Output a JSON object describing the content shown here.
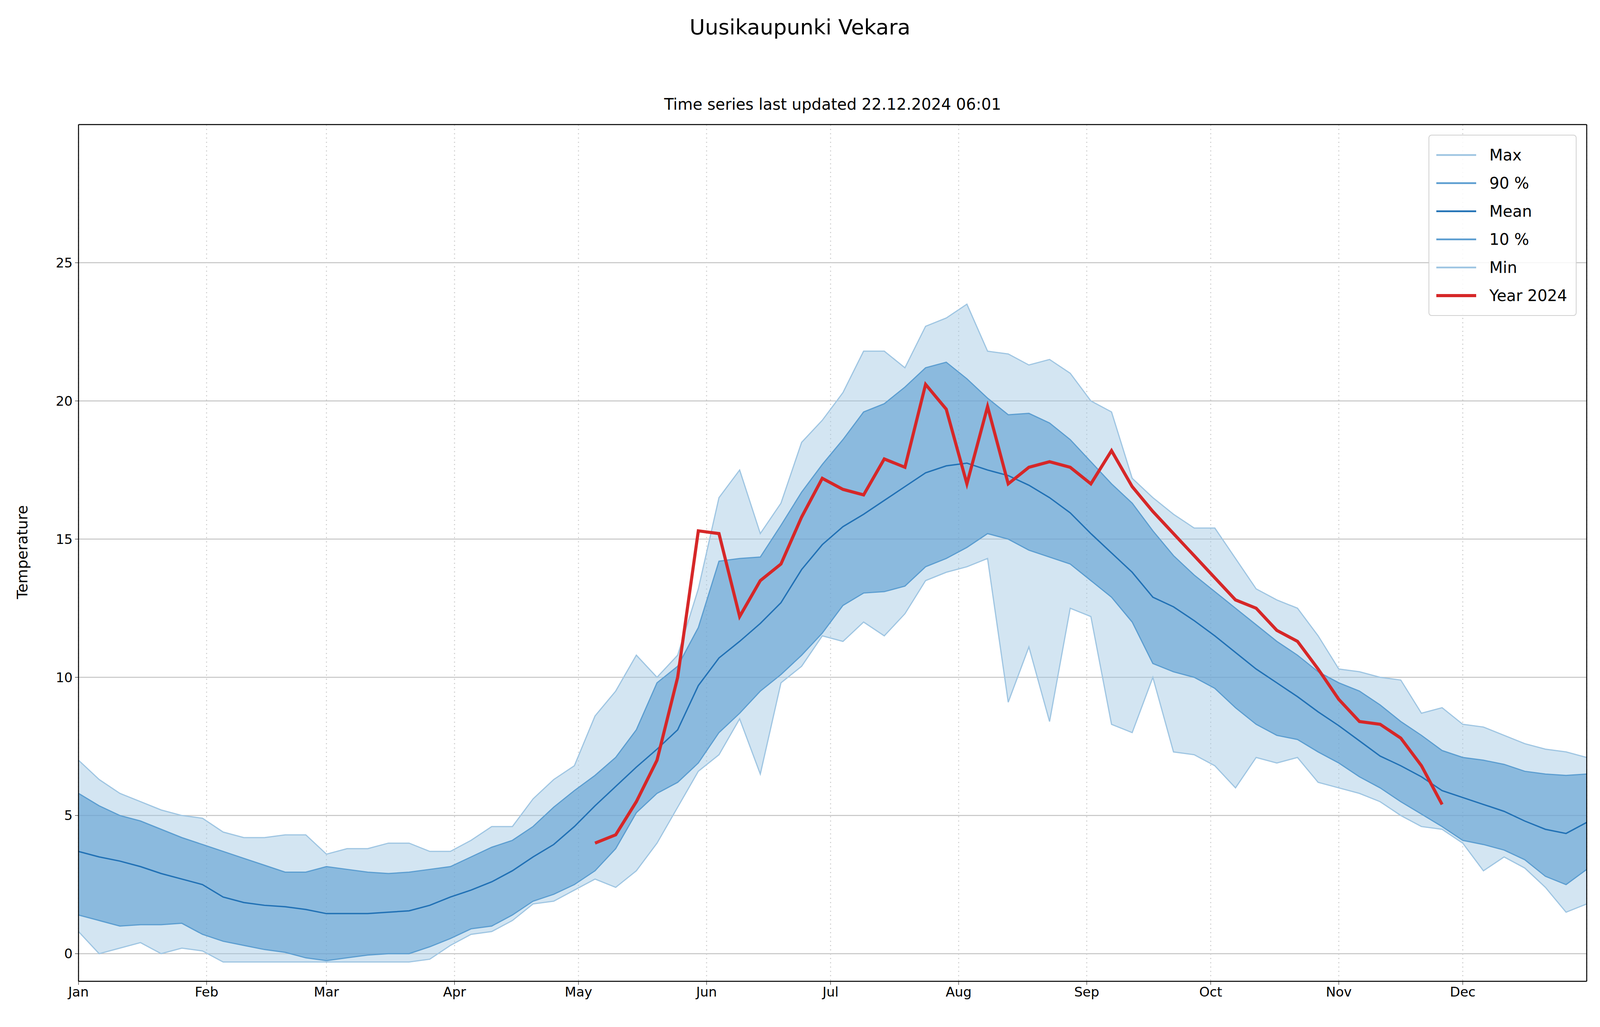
{
  "chart_data": {
    "type": "line",
    "title": "Uusikaupunki Vekara",
    "subtitle": "Time series last updated 22.12.2024 06:01",
    "y_label": "Temperature",
    "x": [
      0,
      5,
      10,
      15,
      20,
      25,
      30,
      35,
      40,
      45,
      50,
      55,
      60,
      65,
      70,
      75,
      80,
      85,
      90,
      95,
      100,
      105,
      110,
      115,
      120,
      125,
      130,
      135,
      140,
      145,
      150,
      155,
      160,
      165,
      170,
      175,
      180,
      185,
      190,
      195,
      200,
      205,
      210,
      215,
      220,
      225,
      230,
      235,
      240,
      245,
      250,
      255,
      260,
      265,
      270,
      275,
      280,
      285,
      290,
      295,
      300,
      305,
      310,
      315,
      320,
      325,
      330,
      335,
      340,
      345,
      350,
      355,
      360,
      365
    ],
    "xlim": [
      0,
      365
    ],
    "xticks": [
      {
        "value": 0,
        "label": "Jan"
      },
      {
        "value": 31,
        "label": "Feb"
      },
      {
        "value": 60,
        "label": "Mar"
      },
      {
        "value": 91,
        "label": "Apr"
      },
      {
        "value": 121,
        "label": "May"
      },
      {
        "value": 152,
        "label": "Jun"
      },
      {
        "value": 182,
        "label": "Jul"
      },
      {
        "value": 213,
        "label": "Aug"
      },
      {
        "value": 244,
        "label": "Sep"
      },
      {
        "value": 274,
        "label": "Oct"
      },
      {
        "value": 305,
        "label": "Nov"
      },
      {
        "value": 335,
        "label": "Dec"
      }
    ],
    "ylim": [
      -1,
      30
    ],
    "yticks": [
      0,
      5,
      10,
      15,
      20,
      25
    ],
    "grid": true,
    "legend": "upper right",
    "series": [
      {
        "name": "Max",
        "type": "area",
        "color": "#9ec5e2",
        "line_style": "solid",
        "values": [
          7.0,
          6.3,
          5.8,
          5.5,
          5.2,
          5.0,
          4.9,
          4.4,
          4.2,
          4.2,
          4.3,
          4.3,
          3.6,
          3.8,
          3.8,
          4.0,
          4.0,
          3.7,
          3.7,
          4.1,
          4.6,
          4.6,
          5.6,
          6.3,
          6.8,
          8.6,
          9.5,
          10.8,
          10.0,
          10.8,
          13.2,
          16.5,
          17.5,
          15.2,
          16.3,
          18.5,
          19.3,
          20.3,
          21.8,
          21.8,
          21.2,
          22.7,
          23.0,
          23.5,
          21.8,
          21.7,
          21.3,
          21.5,
          21.0,
          20.0,
          19.6,
          17.2,
          16.5,
          15.9,
          15.4,
          15.4,
          14.3,
          13.2,
          12.8,
          12.5,
          11.5,
          10.3,
          10.2,
          10.0,
          9.9,
          8.7,
          8.9,
          8.3,
          8.2,
          7.9,
          7.6,
          7.4,
          7.3,
          7.1
        ]
      },
      {
        "name": "90 %",
        "type": "area",
        "color": "#5b9dd0",
        "line_style": "solid",
        "values": [
          5.8,
          5.35,
          5.0,
          4.8,
          4.5,
          4.2,
          3.95,
          3.7,
          3.45,
          3.2,
          2.95,
          2.95,
          3.15,
          3.05,
          2.95,
          2.9,
          2.95,
          3.05,
          3.15,
          3.5,
          3.85,
          4.1,
          4.6,
          5.3,
          5.9,
          6.45,
          7.1,
          8.1,
          9.8,
          10.4,
          11.8,
          14.2,
          14.3,
          14.35,
          15.5,
          16.7,
          17.7,
          18.6,
          19.6,
          19.9,
          20.5,
          21.2,
          21.4,
          20.8,
          20.1,
          19.5,
          19.55,
          19.2,
          18.6,
          17.8,
          17.0,
          16.3,
          15.3,
          14.4,
          13.7,
          13.1,
          12.5,
          11.9,
          11.3,
          10.8,
          10.2,
          9.8,
          9.5,
          9.0,
          8.4,
          7.9,
          7.35,
          7.1,
          7.0,
          6.85,
          6.6,
          6.5,
          6.45,
          6.5
        ]
      },
      {
        "name": "Mean",
        "type": "line",
        "color": "#2171b5",
        "line_style": "solid",
        "values": [
          3.7,
          3.5,
          3.35,
          3.15,
          2.9,
          2.7,
          2.5,
          2.05,
          1.85,
          1.75,
          1.7,
          1.6,
          1.45,
          1.45,
          1.45,
          1.5,
          1.55,
          1.75,
          2.05,
          2.3,
          2.6,
          3.0,
          3.5,
          3.95,
          4.6,
          5.35,
          6.05,
          6.75,
          7.4,
          8.1,
          9.7,
          10.7,
          11.3,
          11.95,
          12.7,
          13.9,
          14.8,
          15.45,
          15.9,
          16.4,
          16.9,
          17.4,
          17.65,
          17.75,
          17.5,
          17.3,
          16.95,
          16.5,
          15.95,
          15.2,
          14.5,
          13.8,
          12.9,
          12.55,
          12.05,
          11.5,
          10.9,
          10.3,
          9.8,
          9.3,
          8.75,
          8.25,
          7.7,
          7.15,
          6.8,
          6.4,
          5.9,
          5.65,
          5.4,
          5.15,
          4.8,
          4.5,
          4.35,
          4.75
        ]
      },
      {
        "name": "10 %",
        "type": "area",
        "color": "#5b9dd0",
        "line_style": "solid",
        "values": [
          1.4,
          1.2,
          1.0,
          1.05,
          1.05,
          1.1,
          0.7,
          0.45,
          0.3,
          0.15,
          0.05,
          -0.15,
          -0.25,
          -0.15,
          -0.05,
          0.0,
          0.0,
          0.25,
          0.55,
          0.9,
          1.0,
          1.4,
          1.9,
          2.15,
          2.5,
          3.0,
          3.8,
          5.1,
          5.8,
          6.2,
          6.9,
          8.0,
          8.7,
          9.5,
          10.1,
          10.8,
          11.6,
          12.6,
          13.05,
          13.1,
          13.3,
          14.0,
          14.3,
          14.7,
          15.2,
          15.0,
          14.6,
          14.35,
          14.1,
          13.5,
          12.9,
          12.0,
          10.5,
          10.2,
          10.0,
          9.6,
          8.9,
          8.3,
          7.9,
          7.75,
          7.3,
          6.9,
          6.4,
          6.0,
          5.5,
          5.05,
          4.6,
          4.1,
          3.95,
          3.75,
          3.4,
          2.8,
          2.5,
          3.05
        ]
      },
      {
        "name": "Min",
        "type": "area",
        "color": "#9ec5e2",
        "line_style": "solid",
        "values": [
          0.8,
          0.0,
          0.2,
          0.4,
          0.0,
          0.2,
          0.1,
          -0.3,
          -0.3,
          -0.3,
          -0.3,
          -0.3,
          -0.3,
          -0.3,
          -0.3,
          -0.3,
          -0.3,
          -0.2,
          0.3,
          0.7,
          0.8,
          1.2,
          1.8,
          1.9,
          2.3,
          2.7,
          2.4,
          3.0,
          4.0,
          5.3,
          6.6,
          7.2,
          8.5,
          6.5,
          9.8,
          10.4,
          11.5,
          11.3,
          12.0,
          11.5,
          12.3,
          13.5,
          13.8,
          14.0,
          14.3,
          9.1,
          11.1,
          8.4,
          12.5,
          12.2,
          8.3,
          8.0,
          10.0,
          7.3,
          7.2,
          6.8,
          6.0,
          7.1,
          6.9,
          7.1,
          6.2,
          6.0,
          5.8,
          5.5,
          5.0,
          4.6,
          4.5,
          4.0,
          3.0,
          3.5,
          3.1,
          2.4,
          1.5,
          1.8
        ]
      },
      {
        "name": "Year 2024",
        "type": "line",
        "color": "#d62728",
        "line_style": "thick",
        "values": [
          null,
          null,
          null,
          null,
          null,
          null,
          null,
          null,
          null,
          null,
          null,
          null,
          null,
          null,
          null,
          null,
          null,
          null,
          null,
          null,
          null,
          null,
          null,
          null,
          null,
          4.0,
          4.3,
          5.5,
          7.0,
          10.0,
          15.3,
          15.2,
          12.2,
          13.5,
          14.1,
          15.8,
          17.2,
          16.8,
          16.6,
          17.9,
          17.6,
          20.6,
          19.7,
          17.0,
          19.8,
          17.0,
          17.6,
          17.8,
          17.6,
          17.0,
          18.2,
          16.9,
          16.0,
          15.2,
          14.4,
          13.6,
          12.8,
          12.5,
          11.7,
          11.3,
          10.3,
          9.2,
          8.4,
          8.3,
          7.8,
          6.8,
          5.4,
          null,
          null,
          null,
          null,
          null,
          null,
          null
        ]
      }
    ]
  }
}
